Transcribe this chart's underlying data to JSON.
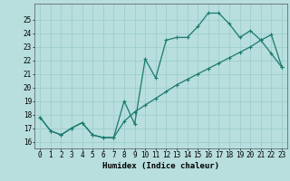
{
  "title": "",
  "xlabel": "Humidex (Indice chaleur)",
  "ylabel": "",
  "background_color": "#b8dede",
  "grid_color": "#9ecece",
  "line_color": "#1a7a6e",
  "x_line1": [
    0,
    1,
    2,
    3,
    4,
    5,
    6,
    7,
    8,
    9,
    10,
    11,
    12,
    13,
    14,
    15,
    16,
    17,
    18,
    19,
    20,
    21,
    22,
    23
  ],
  "y_line1": [
    17.8,
    16.8,
    16.5,
    17.0,
    17.4,
    16.5,
    16.3,
    16.3,
    19.0,
    17.3,
    22.1,
    20.7,
    23.5,
    23.7,
    23.7,
    24.5,
    25.5,
    25.5,
    24.7,
    23.7,
    24.2,
    23.5,
    22.5,
    21.5
  ],
  "x_line2": [
    0,
    1,
    2,
    3,
    4,
    5,
    6,
    7,
    8,
    9,
    10,
    11,
    12,
    13,
    14,
    15,
    16,
    17,
    18,
    19,
    20,
    21,
    22,
    23
  ],
  "y_line2": [
    17.8,
    16.8,
    16.5,
    17.0,
    17.4,
    16.5,
    16.3,
    16.3,
    17.5,
    18.2,
    18.7,
    19.2,
    19.7,
    20.2,
    20.6,
    21.0,
    21.4,
    21.8,
    22.2,
    22.6,
    23.0,
    23.5,
    23.9,
    21.5
  ],
  "xlim": [
    -0.5,
    23.5
  ],
  "ylim": [
    15.5,
    26.2
  ],
  "yticks": [
    16,
    17,
    18,
    19,
    20,
    21,
    22,
    23,
    24,
    25
  ],
  "xticks": [
    0,
    1,
    2,
    3,
    4,
    5,
    6,
    7,
    8,
    9,
    10,
    11,
    12,
    13,
    14,
    15,
    16,
    17,
    18,
    19,
    20,
    21,
    22,
    23
  ],
  "marker": "+",
  "marker_size": 3,
  "line_width": 0.9,
  "font_size_label": 6.5,
  "font_size_tick": 5.5
}
